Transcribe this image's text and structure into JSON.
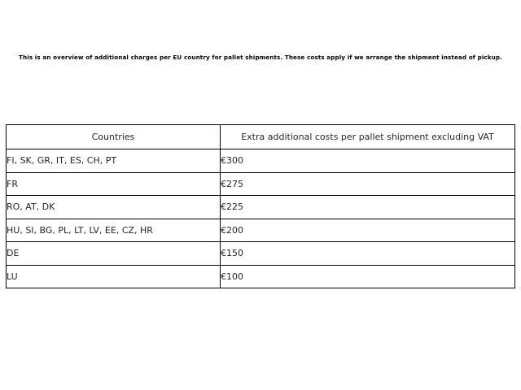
{
  "intro": {
    "text": "This is an overview of additional charges per EU country for pallet shipments. These costs apply if we arrange the shipment instead of pickup."
  },
  "chart_data": {
    "type": "table",
    "title": "This is an overview of additional charges per EU country for pallet shipments. These costs apply if we arrange the shipment instead of pickup.",
    "columns": [
      "Countries",
      "Extra additional costs per pallet shipment excluding VAT"
    ],
    "rows": [
      {
        "countries": "FI, SK, GR, IT, ES, CH, PT",
        "cost": "€300"
      },
      {
        "countries": "FR",
        "cost": "€275"
      },
      {
        "countries": "RO, AT, DK",
        "cost": "€225"
      },
      {
        "countries": "HU, SI, BG, PL, LT, LV, EE, CZ, HR",
        "cost": "€200"
      },
      {
        "countries": "DE",
        "cost": "€150"
      },
      {
        "countries": "LU",
        "cost": "€100"
      }
    ],
    "costs_numeric_eur": [
      300,
      275,
      225,
      200,
      150,
      100
    ],
    "currency": "EUR",
    "layout": {
      "grid": "full-borders",
      "header_align": "center",
      "body_align": "left"
    }
  },
  "colors": {
    "background": "#ffffff",
    "border": "#000000",
    "intro_text": "#000000",
    "table_text": "#262626"
  }
}
